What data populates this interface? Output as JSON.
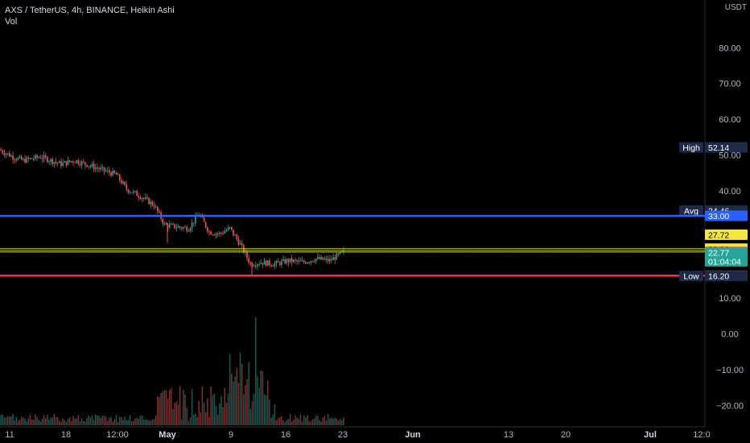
{
  "header": {
    "symbol_line": "AXS / TetherUS, 4h, BINANCE, Heikin Ashi",
    "volume_label": "Vol"
  },
  "currency": "USDT",
  "colors": {
    "up": "#26a69a",
    "down": "#ef5350",
    "blue_line": "#2962ff",
    "yellow_line": "#c9c93a",
    "red_line": "#f23645",
    "axis_text": "#b2b5be"
  },
  "chart_data": {
    "type": "candlestick",
    "price_axis": {
      "ylim": [
        -25,
        88
      ],
      "ticks": [
        "80.00",
        "70.00",
        "60.00",
        "50.00",
        "40.00",
        "10.00",
        "0.00",
        "−10.00",
        "−20.00"
      ],
      "tick_values": [
        80,
        70,
        60,
        50,
        40,
        10,
        0,
        -10,
        -20
      ]
    },
    "x_ticks": [
      "11",
      "18",
      "12:00",
      "May",
      "9",
      "16",
      "23",
      "Jun",
      "13",
      "20",
      "Jul",
      "12:0"
    ],
    "x_tick_emphasis": [
      "May",
      "Jun",
      "Jul"
    ],
    "levels": [
      {
        "name": "High",
        "value": 52.14,
        "label": "52.14",
        "style": "tag"
      },
      {
        "name": "Avg",
        "value": 34.46,
        "label": "34.46",
        "style": "tag"
      },
      {
        "name": "",
        "value": 33.0,
        "label": "33.00",
        "style": "blue-line"
      },
      {
        "name": "",
        "value": 27.72,
        "label": "27.72",
        "style": "yellow"
      },
      {
        "name": "",
        "value": 23.81,
        "label": "23.81",
        "style": "yellow-line"
      },
      {
        "name": "",
        "value": 22.9,
        "label": "22.90",
        "style": "red"
      },
      {
        "name": "",
        "value": 22.77,
        "label": "22.77",
        "style": "last-price"
      },
      {
        "name": "",
        "value": 16.27,
        "label": "16.27",
        "style": "red-line"
      },
      {
        "name": "Low",
        "value": 16.2,
        "label": "16.20",
        "style": "tag"
      }
    ],
    "last_price_countdown": "01:04:04",
    "price_path": [
      [
        0,
        51.5
      ],
      [
        0.04,
        49.5
      ],
      [
        0.07,
        48.5
      ],
      [
        0.12,
        49.5
      ],
      [
        0.18,
        47.5
      ],
      [
        0.22,
        48.5
      ],
      [
        0.28,
        46.5
      ],
      [
        0.34,
        44.5
      ],
      [
        0.37,
        40.5
      ],
      [
        0.41,
        38.5
      ],
      [
        0.45,
        36.0
      ],
      [
        0.48,
        30.5
      ],
      [
        0.51,
        30.0
      ],
      [
        0.55,
        29.5
      ],
      [
        0.58,
        33.5
      ],
      [
        0.61,
        28.5
      ],
      [
        0.64,
        28.0
      ],
      [
        0.67,
        29.5
      ],
      [
        0.7,
        25.0
      ],
      [
        0.73,
        19.5
      ],
      [
        0.76,
        20.0
      ],
      [
        0.8,
        19.5
      ],
      [
        0.84,
        20.5
      ],
      [
        0.88,
        20.0
      ],
      [
        0.92,
        21.0
      ],
      [
        0.96,
        20.5
      ],
      [
        1.0,
        22.8
      ]
    ]
  }
}
